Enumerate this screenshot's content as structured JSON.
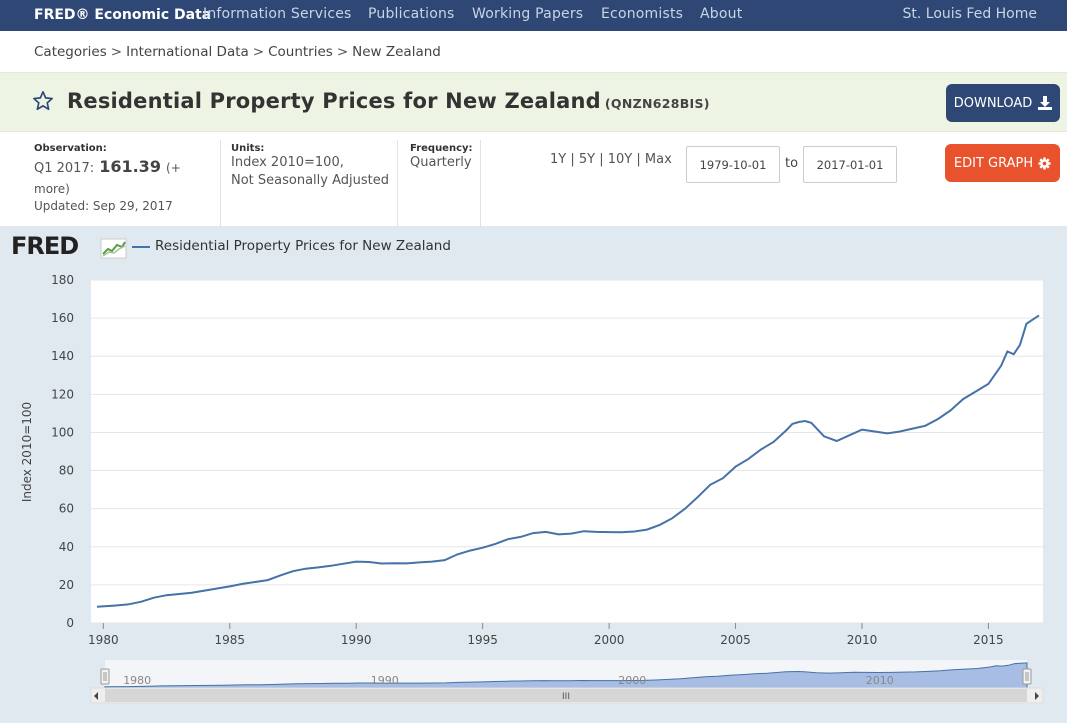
{
  "nav": {
    "brand": "FRED® Economic Data",
    "links": [
      "Information Services",
      "Publications",
      "Working Papers",
      "Economists",
      "About"
    ],
    "home": "St. Louis Fed Home"
  },
  "breadcrumb": [
    "Categories",
    "International Data",
    "Countries",
    "New Zealand"
  ],
  "header": {
    "title": "Residential Property Prices for New Zealand",
    "series_id": "(QNZN628BIS)",
    "download_label": "DOWNLOAD"
  },
  "meta": {
    "observation_label": "Observation:",
    "observation_period": "Q1 2017:",
    "observation_value": "161.39",
    "more": "(+ more)",
    "updated": "Updated: Sep 29, 2017",
    "units_label": "Units:",
    "units_line1": "Index 2010=100,",
    "units_line2": "Not Seasonally Adjusted",
    "frequency_label": "Frequency:",
    "frequency_value": "Quarterly",
    "ranges": [
      "1Y",
      "5Y",
      "10Y",
      "Max"
    ],
    "start_date": "1979-10-01",
    "to_label": "to",
    "end_date": "2017-01-01",
    "edit_label": "EDIT GRAPH"
  },
  "graph": {
    "logo": "FRED",
    "legend": "Residential Property Prices for New Zealand"
  },
  "colors": {
    "nav_bg": "#2f4774",
    "series": "#4572a7",
    "edit_button": "#e8522d",
    "title_band": "#eef4e3",
    "graph_bg": "#e1e9f0"
  },
  "chart_data": {
    "type": "line",
    "ylabel": "Index 2010=100",
    "xlabel": "",
    "ylim": [
      0,
      180
    ],
    "xlim": [
      1979.75,
      2017.0
    ],
    "yticks": [
      0,
      20,
      40,
      60,
      80,
      100,
      120,
      140,
      160,
      180
    ],
    "xticks": [
      1980,
      1985,
      1990,
      1995,
      2000,
      2005,
      2010,
      2015
    ],
    "navigator_ticks": [
      "1980",
      "1990",
      "2000",
      "2010"
    ],
    "series": [
      {
        "x": [
          1979.75,
          1980.5,
          1981.0,
          1981.5,
          1982.0,
          1982.5,
          1983.0,
          1983.5,
          1984.0,
          1984.5,
          1985.0,
          1985.5,
          1986.0,
          1986.5,
          1987.0,
          1987.5,
          1988.0,
          1988.5,
          1989.0,
          1989.5,
          1990.0,
          1990.5,
          1991.0,
          1991.5,
          1992.0,
          1992.5,
          1993.0,
          1993.5,
          1994.0,
          1994.5,
          1995.0,
          1995.5,
          1996.0,
          1996.5,
          1997.0,
          1997.5,
          1998.0,
          1998.5,
          1999.0,
          1999.5,
          2000.0,
          2000.5,
          2001.0,
          2001.5,
          2002.0,
          2002.5,
          2003.0,
          2003.5,
          2004.0,
          2004.5,
          2005.0,
          2005.5,
          2006.0,
          2006.5,
          2007.0,
          2007.25,
          2007.5,
          2007.75,
          2008.0,
          2008.5,
          2009.0,
          2009.5,
          2010.0,
          2010.5,
          2011.0,
          2011.5,
          2012.0,
          2012.5,
          2013.0,
          2013.5,
          2014.0,
          2014.5,
          2015.0,
          2015.5,
          2015.75,
          2016.0,
          2016.25,
          2016.5,
          2017.0
        ],
        "values": [
          8.5,
          9.2,
          9.8,
          11.2,
          13.3,
          14.6,
          15.2,
          15.9,
          17.0,
          18.1,
          19.2,
          20.5,
          21.5,
          22.5,
          25.0,
          27.2,
          28.5,
          29.2,
          30.0,
          31.1,
          32.2,
          32.0,
          31.2,
          31.4,
          31.3,
          31.8,
          32.2,
          33.0,
          36.0,
          38.0,
          39.5,
          41.5,
          44.0,
          45.2,
          47.2,
          47.8,
          46.5,
          46.9,
          48.2,
          47.8,
          47.7,
          47.6,
          48.0,
          49.0,
          51.5,
          55.0,
          60.0,
          66.0,
          72.5,
          76.0,
          82.0,
          86.0,
          91.0,
          95.0,
          101.0,
          104.5,
          105.5,
          106.0,
          105.0,
          98.0,
          95.5,
          98.5,
          101.5,
          100.5,
          99.5,
          100.5,
          102.0,
          103.5,
          107.0,
          111.5,
          117.5,
          121.5,
          125.5,
          135.0,
          142.5,
          141.0,
          146.0,
          157.0,
          161.4
        ]
      }
    ]
  }
}
